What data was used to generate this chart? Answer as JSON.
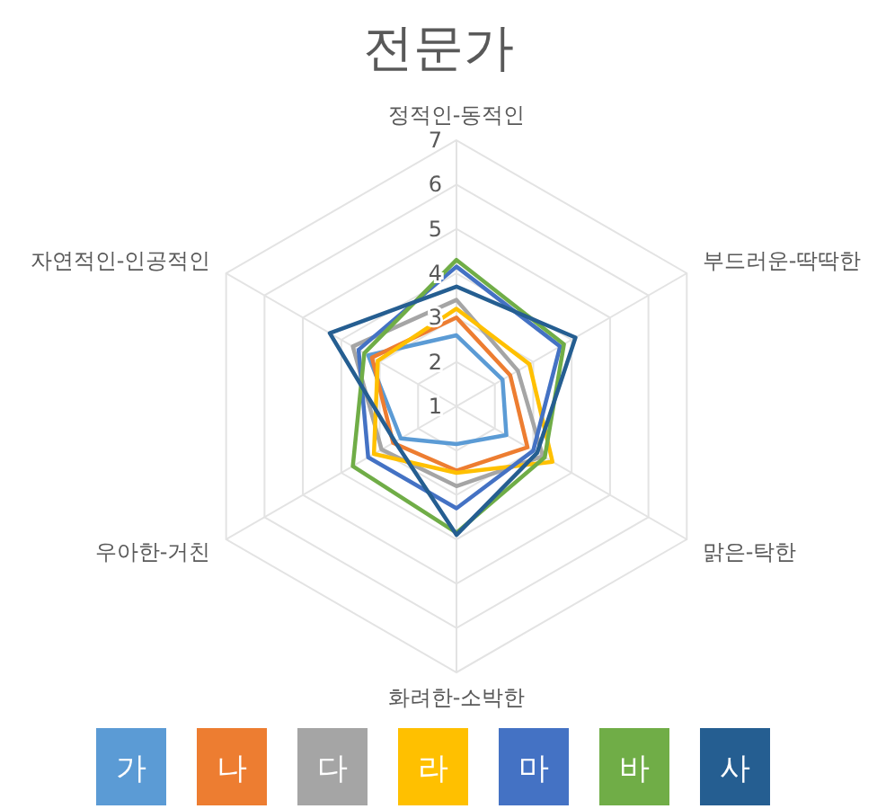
{
  "chart_data": {
    "type": "radar",
    "title": "전문가",
    "categories": [
      "정적인-동적인",
      "부드러운-딱딱한",
      "맑은-탁한",
      "화려한-소박한",
      "우아한-거친",
      "자연적인-인공적인"
    ],
    "ylim": [
      1,
      7
    ],
    "yticks": [
      1,
      2,
      3,
      4,
      5,
      6,
      7
    ],
    "grid": true,
    "legend": "bottom",
    "series": [
      {
        "name": "가",
        "color": "#5b9bd5",
        "values": [
          2.6,
          2.2,
          2.3,
          1.85,
          2.45,
          3.3
        ]
      },
      {
        "name": "나",
        "color": "#ed7d31",
        "values": [
          3.0,
          2.4,
          2.85,
          2.45,
          2.65,
          3.2
        ]
      },
      {
        "name": "다",
        "color": "#a5a5a5",
        "values": [
          3.4,
          2.6,
          3.25,
          2.8,
          2.95,
          3.7
        ]
      },
      {
        "name": "라",
        "color": "#ffc000",
        "values": [
          3.2,
          2.9,
          3.5,
          2.5,
          3.15,
          3.05
        ]
      },
      {
        "name": "마",
        "color": "#4472c4",
        "values": [
          4.15,
          3.7,
          3.0,
          3.3,
          3.3,
          3.55
        ]
      },
      {
        "name": "바",
        "color": "#70ad47",
        "values": [
          4.3,
          3.8,
          3.3,
          3.85,
          3.7,
          3.4
        ]
      },
      {
        "name": "사",
        "color": "#255e91",
        "values": [
          3.7,
          4.1,
          3.1,
          3.9,
          2.6,
          4.3
        ]
      }
    ]
  }
}
